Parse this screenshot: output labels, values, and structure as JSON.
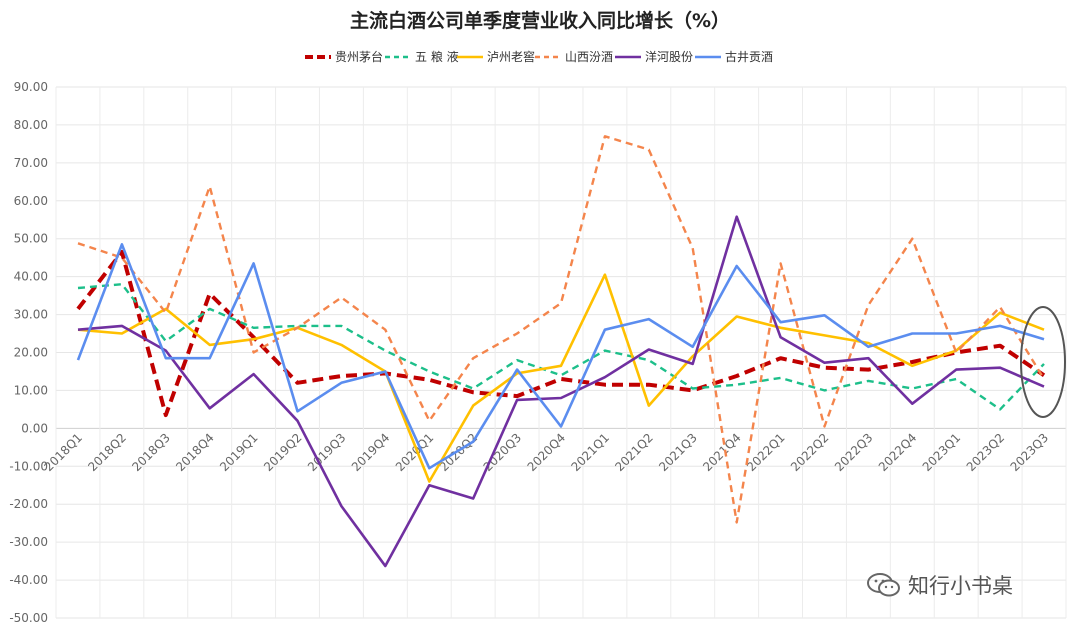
{
  "chart_data": {
    "type": "line",
    "title": "主流白酒公司单季度营业收入同比增长（%）",
    "categories": [
      "2018Q1",
      "2018Q2",
      "2018Q3",
      "2018Q4",
      "2019Q1",
      "2019Q2",
      "2019Q3",
      "2019Q4",
      "2020Q1",
      "2020Q2",
      "2020Q3",
      "2020Q4",
      "2021Q1",
      "2021Q2",
      "2021Q3",
      "2021Q4",
      "2022Q1",
      "2022Q2",
      "2022Q3",
      "2022Q4",
      "2023Q1",
      "2023Q2",
      "2023Q3"
    ],
    "ylim": [
      -50,
      90
    ],
    "yticks": [
      "90.00",
      "80.00",
      "70.00",
      "60.00",
      "50.00",
      "40.00",
      "30.00",
      "20.00",
      "10.00",
      "0.00",
      "-10.00",
      "-20.00",
      "-30.00",
      "-40.00",
      "-50.00"
    ],
    "grid": true,
    "legend_position": "top",
    "series": [
      {
        "name": "贵州茅台",
        "color": "#c00000",
        "dash": "dashed-thick",
        "values": [
          31.5,
          46.5,
          3.5,
          35.5,
          24,
          12,
          13.8,
          14.5,
          12.8,
          9.5,
          8.5,
          13,
          11.5,
          11.5,
          10,
          13.8,
          18.5,
          16,
          15.5,
          17.5,
          20,
          21.8,
          14
        ]
      },
      {
        "name": "五 粮 液",
        "color": "#1dbf8a",
        "dash": "dashed",
        "values": [
          37,
          38,
          23,
          31.5,
          26.5,
          27,
          27,
          20.5,
          15,
          10.5,
          18,
          14,
          20.5,
          18,
          10.5,
          11.5,
          13.3,
          10,
          12.5,
          10.5,
          13,
          5,
          17
        ]
      },
      {
        "name": "泸州老窖",
        "color": "#ffc000",
        "dash": "solid",
        "values": [
          26,
          25,
          31.5,
          22,
          23.5,
          26.5,
          22,
          15,
          -14,
          6,
          14.5,
          16.5,
          40.5,
          6,
          19,
          29.5,
          26.5,
          24.5,
          22.5,
          16.5,
          20.5,
          30.5,
          26
        ]
      },
      {
        "name": "山西汾酒",
        "color": "#f4854c",
        "dash": "dashed",
        "values": [
          48.8,
          45,
          30.5,
          63.8,
          20,
          26.5,
          34.5,
          26,
          2,
          18.5,
          25,
          33,
          77,
          73.5,
          47.5,
          -24.8,
          43.5,
          0.5,
          32.5,
          50,
          20,
          32,
          13
        ]
      },
      {
        "name": "洋河股份",
        "color": "#7030a0",
        "dash": "solid",
        "values": [
          26,
          27,
          20.5,
          5.3,
          14.3,
          2,
          -20.5,
          -36.3,
          -15,
          -18.5,
          7.5,
          8,
          13.5,
          20.8,
          17,
          55.8,
          24,
          17.3,
          18.5,
          6.5,
          15.5,
          16,
          11
        ]
      },
      {
        "name": "古井贡酒",
        "color": "#5b8def",
        "dash": "solid",
        "values": [
          18,
          48.5,
          18.5,
          18.5,
          43.5,
          4.5,
          12,
          15,
          -10.5,
          -3.5,
          15.5,
          0.5,
          26,
          28.8,
          21.5,
          42.8,
          28,
          29.8,
          21.5,
          25,
          25,
          27,
          23.5
        ]
      }
    ]
  },
  "watermark": {
    "text": "知行小书桌",
    "icon": "wechat-icon"
  }
}
